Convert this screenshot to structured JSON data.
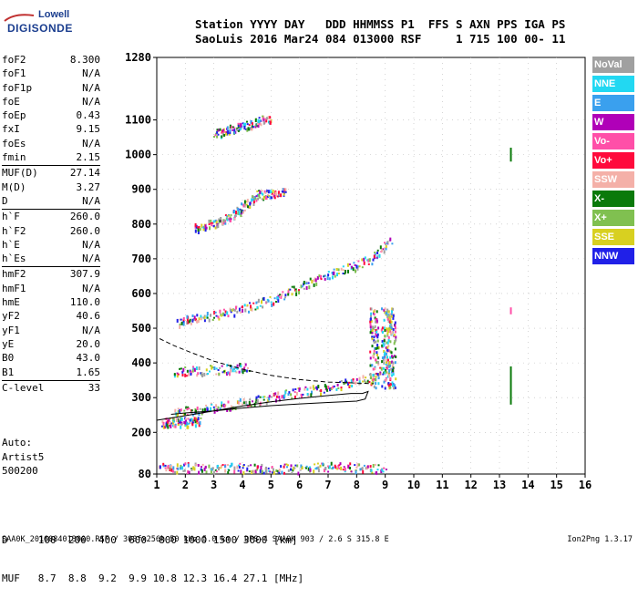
{
  "logo": {
    "top": "Lowell",
    "main": "DIGISONDE"
  },
  "header": {
    "line1": "Station YYYY DAY   DDD HHMMSS P1  FFS S AXN PPS IGA PS",
    "line2": "SaoLuis 2016 Mar24 084 013000 RSF     1 715 100 00- 11"
  },
  "params": [
    {
      "name": "foF2",
      "value": "8.300"
    },
    {
      "name": "foF1",
      "value": "N/A"
    },
    {
      "name": "foF1p",
      "value": "N/A"
    },
    {
      "name": "foE",
      "value": "N/A"
    },
    {
      "name": "foEp",
      "value": "0.43"
    },
    {
      "name": "fxI",
      "value": "9.15"
    },
    {
      "name": "foEs",
      "value": "N/A"
    },
    {
      "name": "fmin",
      "value": "2.15"
    },
    {
      "sep": true
    },
    {
      "name": "MUF(D)",
      "value": "27.14"
    },
    {
      "name": "M(D)",
      "value": "3.27"
    },
    {
      "name": "D",
      "value": "N/A"
    },
    {
      "sep": true
    },
    {
      "name": "h`F",
      "value": "260.0"
    },
    {
      "name": "h`F2",
      "value": "260.0"
    },
    {
      "name": "h`E",
      "value": "N/A"
    },
    {
      "name": "h`Es",
      "value": "N/A"
    },
    {
      "sep": true
    },
    {
      "name": "hmF2",
      "value": "307.9"
    },
    {
      "name": "hmF1",
      "value": "N/A"
    },
    {
      "name": "hmE",
      "value": "110.0"
    },
    {
      "name": "yF2",
      "value": "40.6"
    },
    {
      "name": "yF1",
      "value": "N/A"
    },
    {
      "name": "yE",
      "value": "20.0"
    },
    {
      "name": "B0",
      "value": "43.0"
    },
    {
      "name": "B1",
      "value": "1.65"
    },
    {
      "sep": true
    },
    {
      "name": "C-level",
      "value": "33"
    }
  ],
  "auto": {
    "line1": "Auto:",
    "line2": "Artist5",
    "line3": "500200"
  },
  "legend": [
    {
      "label": "NoVal",
      "color": "#a0a0a0"
    },
    {
      "label": "NNE",
      "color": "#22d8f2"
    },
    {
      "label": "E",
      "color": "#3aa0ee"
    },
    {
      "label": "W",
      "color": "#b000b8"
    },
    {
      "label": "Vo-",
      "color": "#ff4fa8"
    },
    {
      "label": "Vo+",
      "color": "#ff0a3c"
    },
    {
      "label": "SSW",
      "color": "#f4b0a8"
    },
    {
      "label": "X-",
      "color": "#0a7a0a"
    },
    {
      "label": "X+",
      "color": "#80c050"
    },
    {
      "label": "SSE",
      "color": "#d8d020"
    },
    {
      "label": "NNW",
      "color": "#2020e8"
    }
  ],
  "chart_data": {
    "type": "scatter",
    "x_ticks": [
      "1",
      "2",
      "3",
      "4",
      "5",
      "6",
      "7",
      "8",
      "9",
      "10",
      "11",
      "12",
      "13",
      "14",
      "15",
      "16"
    ],
    "y_ticks": [
      "80",
      "200",
      "300",
      "400",
      "500",
      "600",
      "700",
      "800",
      "900",
      "1000",
      "1100",
      "1280"
    ],
    "xlim": [
      1,
      16
    ],
    "ylim": [
      80,
      1280
    ],
    "grid": true,
    "profile_solid": [
      [
        1.0,
        235
      ],
      [
        2,
        248
      ],
      [
        3,
        262
      ],
      [
        4,
        276
      ],
      [
        5,
        288
      ],
      [
        6,
        298
      ],
      [
        7,
        306
      ],
      [
        7.8,
        312
      ],
      [
        8.2,
        312
      ],
      [
        8.4,
        318
      ],
      [
        8.3,
        296
      ],
      [
        8.0,
        290
      ],
      [
        7,
        286
      ],
      [
        6,
        282
      ],
      [
        5,
        277
      ],
      [
        4,
        270
      ],
      [
        3,
        262
      ],
      [
        2,
        256
      ],
      [
        1.5,
        252
      ]
    ],
    "profile_dashed": [
      [
        1.1,
        470
      ],
      [
        1.6,
        450
      ],
      [
        2.2,
        430
      ],
      [
        3,
        405
      ],
      [
        4,
        382
      ],
      [
        5,
        364
      ],
      [
        6,
        352
      ],
      [
        7,
        345
      ],
      [
        8,
        342
      ],
      [
        8.6,
        340
      ]
    ],
    "traces": [
      {
        "name": "F1 trace",
        "points": [
          [
            1.6,
            262
          ],
          [
            2.5,
            268
          ],
          [
            3.5,
            280
          ],
          [
            4.5,
            295
          ],
          [
            5.5,
            310
          ],
          [
            6.5,
            325
          ],
          [
            7.5,
            340
          ],
          [
            8.5,
            360
          ],
          [
            9.2,
            395
          ]
        ]
      },
      {
        "name": "F2 trace",
        "points": [
          [
            1.7,
            520
          ],
          [
            2.5,
            532
          ],
          [
            3.5,
            548
          ],
          [
            4.5,
            570
          ],
          [
            5.5,
            600
          ],
          [
            6.5,
            640
          ],
          [
            7.5,
            670
          ],
          [
            8.5,
            700
          ],
          [
            9.2,
            760
          ]
        ]
      },
      {
        "name": "F3 trace",
        "points": [
          [
            2.3,
            790
          ],
          [
            3,
            805
          ],
          [
            3.5,
            820
          ],
          [
            4,
            850
          ],
          [
            4.5,
            885
          ],
          [
            5,
            890
          ],
          [
            5.5,
            900
          ]
        ]
      },
      {
        "name": "F4 trace",
        "points": [
          [
            3,
            1060
          ],
          [
            3.5,
            1075
          ],
          [
            4,
            1085
          ],
          [
            4.5,
            1095
          ],
          [
            5,
            1110
          ]
        ]
      },
      {
        "name": "Es lower trace",
        "points": [
          [
            1.6,
            375
          ],
          [
            2.5,
            380
          ],
          [
            3.5,
            385
          ],
          [
            4.2,
            390
          ]
        ]
      },
      {
        "name": "low band",
        "points": [
          [
            1.2,
            230
          ],
          [
            1.6,
            232
          ],
          [
            2.0,
            233
          ],
          [
            2.5,
            232
          ]
        ]
      },
      {
        "name": "noise floor",
        "points": [
          [
            1.1,
            100
          ],
          [
            2,
            102
          ],
          [
            3,
            98
          ],
          [
            4,
            100
          ],
          [
            5,
            96
          ],
          [
            6,
            100
          ],
          [
            7,
            102
          ],
          [
            8,
            100
          ],
          [
            9,
            98
          ]
        ]
      }
    ],
    "columns": [
      {
        "name": "vertical spread",
        "x": [
          8.6,
          9.0,
          9.2
        ],
        "y_range": [
          330,
          560
        ]
      },
      {
        "name": "X markers",
        "x": [
          13.4
        ],
        "segments": [
          [
            280,
            390
          ],
          [
            980,
            1020
          ],
          [
            540,
            560
          ]
        ]
      }
    ],
    "footer_table": {
      "D_label": "D",
      "MUF_label": "MUF",
      "D_values": [
        "100",
        "200",
        "400",
        "600",
        "800",
        "1000",
        "1500",
        "3000"
      ],
      "D_unit": "[km]",
      "MUF_values": [
        "8.7",
        "8.8",
        "9.2",
        "9.9",
        "10.8",
        "12.3",
        "16.4",
        "27.1"
      ],
      "MUF_unit": "[MHz]"
    }
  },
  "footer": {
    "note": "SAA0K_2016084013000.RSF / 300fx256h 50 kHz 5.0 km / DPS-4 SAA0K 903 / 2.6 S 315.8 E",
    "version": "Ion2Png 1.3.17"
  }
}
